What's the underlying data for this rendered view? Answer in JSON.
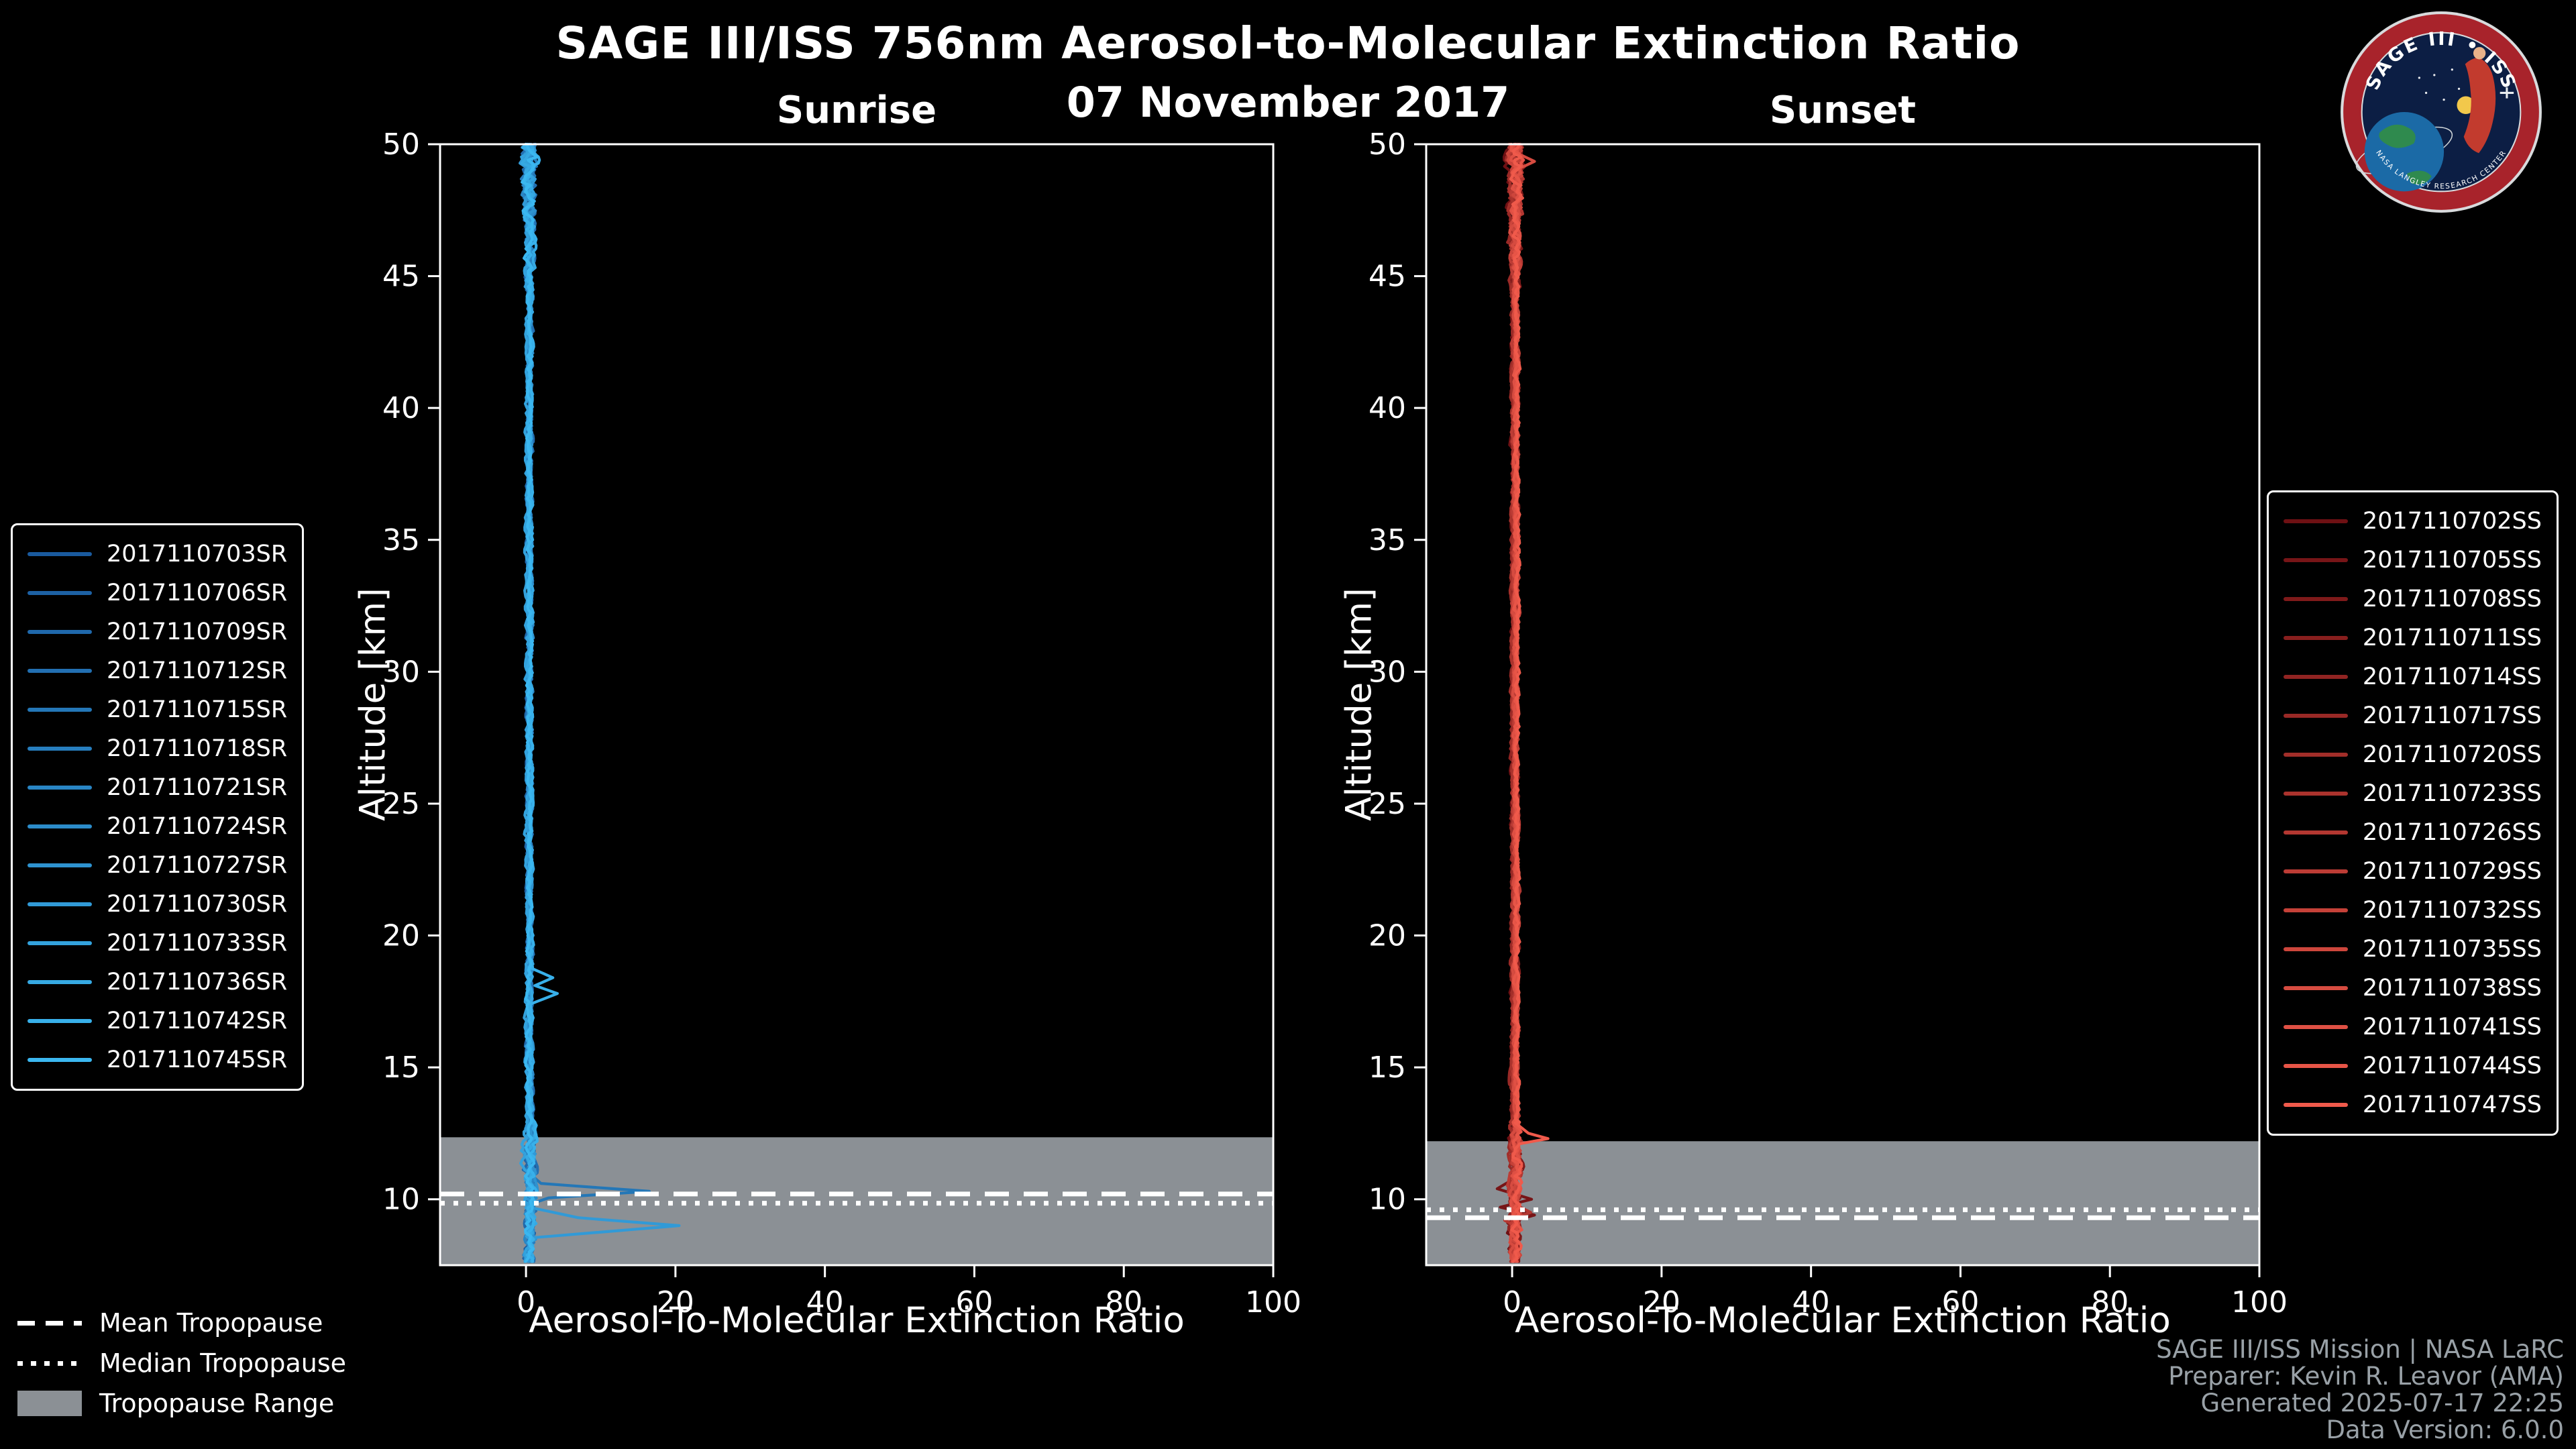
{
  "header": {
    "title": "SAGE III/ISS 756nm Aerosol-to-Molecular Extinction Ratio",
    "date": "07 November 2017"
  },
  "logo": {
    "title": "SAGE III • ISS",
    "arc_text": "NASA LANGLEY RESEARCH CENTER"
  },
  "tropopause_legend": {
    "mean": "Mean Tropopause",
    "median": "Median Tropopause",
    "range": "Tropopause Range"
  },
  "credits": [
    "SAGE III/ISS Mission | NASA LaRC",
    "Preparer: Kevin R. Leavor (AMA)",
    "Generated 2025-07-17 22:25",
    "Data Version: 6.0.0"
  ],
  "style": {
    "background": "#000000",
    "axis_color": "#ffffff",
    "band_color": "#8b9095"
  },
  "chart_data": [
    {
      "type": "line",
      "title": "Sunrise",
      "xlabel": "Aerosol-To-Molecular Extinction Ratio",
      "ylabel": "Altitude [km]",
      "xlim": [
        -11.5,
        100
      ],
      "ylim": [
        7.5,
        50
      ],
      "xticks": [
        0,
        20,
        40,
        60,
        80,
        100
      ],
      "yticks": [
        10,
        15,
        20,
        25,
        30,
        35,
        40,
        45,
        50
      ],
      "legend_position": "outside-left",
      "color_start": "#1a5a9e",
      "color_end": "#3bb7f0",
      "baseline_ratio": 0.4,
      "jitter": {
        "base": 0.55,
        "upper_start_km": 44,
        "upper_gain": 0.2,
        "lower_km": 13,
        "lower_amp": 1.1
      },
      "mean_tropopause_km": 10.2,
      "median_tropopause_km": 9.85,
      "tropopause_range_km": [
        7.5,
        12.35
      ],
      "series": [
        "2017110703SR",
        "2017110706SR",
        "2017110709SR",
        "2017110712SR",
        "2017110715SR",
        "2017110718SR",
        "2017110721SR",
        "2017110724SR",
        "2017110727SR",
        "2017110730SR",
        "2017110733SR",
        "2017110736SR",
        "2017110742SR",
        "2017110745SR"
      ],
      "anomalies": [
        {
          "series_index": 4,
          "points": [
            [
              11.0,
              0.4
            ],
            [
              10.6,
              2.0
            ],
            [
              10.3,
              16.5
            ],
            [
              10.05,
              3.0
            ],
            [
              9.8,
              0.4
            ]
          ]
        },
        {
          "series_index": 9,
          "points": [
            [
              9.7,
              0.4
            ],
            [
              9.3,
              7.0
            ],
            [
              9.0,
              20.5
            ],
            [
              8.8,
              12.0
            ],
            [
              8.55,
              1.2
            ],
            [
              8.3,
              0.4
            ]
          ]
        },
        {
          "series_index": 12,
          "points": [
            [
              18.8,
              0.4
            ],
            [
              18.4,
              3.6
            ],
            [
              18.1,
              1.2
            ],
            [
              17.8,
              4.2
            ],
            [
              17.4,
              0.6
            ]
          ]
        }
      ]
    },
    {
      "type": "line",
      "title": "Sunset",
      "xlabel": "Aerosol-To-Molecular Extinction Ratio",
      "ylabel": "Altitude [km]",
      "xlim": [
        -11.5,
        100
      ],
      "ylim": [
        7.5,
        50
      ],
      "xticks": [
        0,
        20,
        40,
        60,
        80,
        100
      ],
      "yticks": [
        10,
        15,
        20,
        25,
        30,
        35,
        40,
        45,
        50
      ],
      "legend_position": "outside-right",
      "color_start": "#6e1013",
      "color_end": "#f05a4b",
      "baseline_ratio": 0.4,
      "jitter": {
        "base": 0.55,
        "upper_start_km": 44,
        "upper_gain": 0.18,
        "lower_km": 13,
        "lower_amp": 1.1
      },
      "mean_tropopause_km": 9.3,
      "median_tropopause_km": 9.6,
      "tropopause_range_km": [
        7.5,
        12.2
      ],
      "series": [
        "2017110702SS",
        "2017110705SS",
        "2017110708SS",
        "2017110711SS",
        "2017110714SS",
        "2017110717SS",
        "2017110720SS",
        "2017110723SS",
        "2017110726SS",
        "2017110729SS",
        "2017110732SS",
        "2017110735SS",
        "2017110738SS",
        "2017110741SS",
        "2017110744SS",
        "2017110747SS"
      ],
      "anomalies": [
        {
          "series_index": 15,
          "points": [
            [
              12.9,
              0.4
            ],
            [
              12.5,
              2.2
            ],
            [
              12.3,
              4.8
            ],
            [
              12.1,
              1.0
            ],
            [
              11.9,
              0.4
            ]
          ]
        },
        {
          "series_index": 1,
          "points": [
            [
              10.8,
              0.4
            ],
            [
              10.4,
              -2.0
            ],
            [
              10.0,
              2.6
            ],
            [
              9.7,
              -1.6
            ],
            [
              9.4,
              3.0
            ],
            [
              9.1,
              -0.6
            ],
            [
              8.9,
              0.4
            ]
          ]
        },
        {
          "series_index": 8,
          "points": [
            [
              9.8,
              0.4
            ],
            [
              9.5,
              2.5
            ],
            [
              9.2,
              -1.0
            ],
            [
              9.0,
              0.4
            ]
          ]
        },
        {
          "series_index": 12,
          "points": [
            [
              49.7,
              0.4
            ],
            [
              49.35,
              3.0
            ],
            [
              49.0,
              0.4
            ]
          ]
        }
      ]
    }
  ]
}
